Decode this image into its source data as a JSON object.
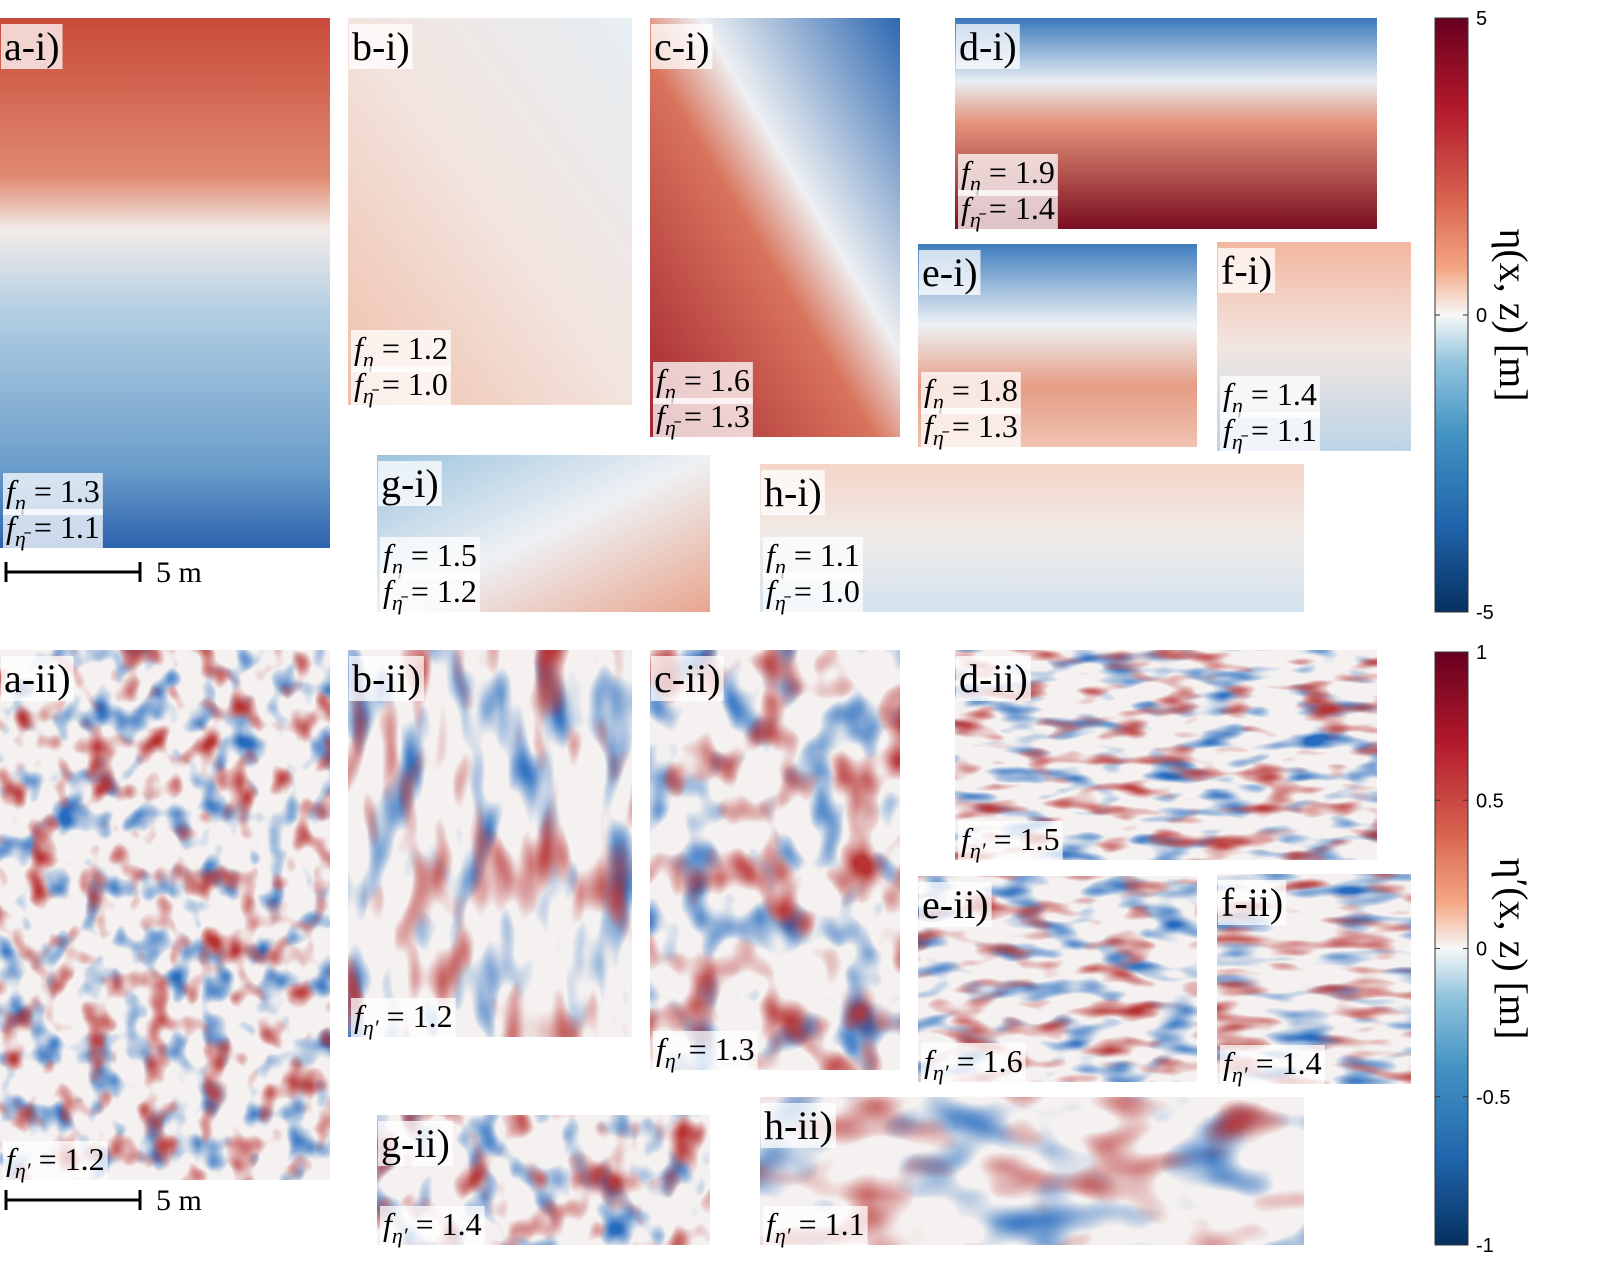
{
  "rows": [
    {
      "panels": [
        {
          "label": "a-i)",
          "stats": [
            {
              "symbol": "f",
              "subscript": "η",
              "text": "= 1.3"
            },
            {
              "symbol": "f",
              "subscript": "η̄",
              "text": "= 1.1"
            }
          ]
        },
        {
          "label": "b-i)",
          "stats": [
            {
              "symbol": "f",
              "subscript": "η",
              "text": "= 1.2"
            },
            {
              "symbol": "f",
              "subscript": "η̄",
              "text": "= 1.0"
            }
          ]
        },
        {
          "label": "c-i)",
          "stats": [
            {
              "symbol": "f",
              "subscript": "η",
              "text": "= 1.6"
            },
            {
              "symbol": "f",
              "subscript": "η̄",
              "text": "= 1.3"
            }
          ]
        },
        {
          "label": "d-i)",
          "stats": [
            {
              "symbol": "f",
              "subscript": "η",
              "text": "= 1.9"
            },
            {
              "symbol": "f",
              "subscript": "η̄",
              "text": "= 1.4"
            }
          ]
        },
        {
          "label": "e-i)",
          "stats": [
            {
              "symbol": "f",
              "subscript": "η",
              "text": "= 1.8"
            },
            {
              "symbol": "f",
              "subscript": "η̄",
              "text": "= 1.3"
            }
          ]
        },
        {
          "label": "f-i)",
          "stats": [
            {
              "symbol": "f",
              "subscript": "η",
              "text": "= 1.4"
            },
            {
              "symbol": "f",
              "subscript": "η̄",
              "text": "= 1.1"
            }
          ]
        },
        {
          "label": "g-i)",
          "stats": [
            {
              "symbol": "f",
              "subscript": "η",
              "text": "= 1.5"
            },
            {
              "symbol": "f",
              "subscript": "η̄",
              "text": "= 1.2"
            }
          ]
        },
        {
          "label": "h-i)",
          "stats": [
            {
              "symbol": "f",
              "subscript": "η",
              "text": "= 1.1"
            },
            {
              "symbol": "f",
              "subscript": "η̄",
              "text": "= 1.0"
            }
          ]
        }
      ],
      "scale_bar": "5 m",
      "colorbar": {
        "label": "η(x, z) [m]",
        "lim": [
          -5,
          5
        ],
        "ticks": [
          5,
          0,
          -5
        ]
      }
    },
    {
      "panels": [
        {
          "label": "a-ii)",
          "stats": [
            {
              "symbol": "f",
              "subscript": "η′",
              "text": "= 1.2"
            }
          ]
        },
        {
          "label": "b-ii)",
          "stats": [
            {
              "symbol": "f",
              "subscript": "η′",
              "text": "= 1.2"
            }
          ]
        },
        {
          "label": "c-ii)",
          "stats": [
            {
              "symbol": "f",
              "subscript": "η′",
              "text": "= 1.3"
            }
          ]
        },
        {
          "label": "d-ii)",
          "stats": [
            {
              "symbol": "f",
              "subscript": "η′",
              "text": "= 1.5"
            }
          ]
        },
        {
          "label": "e-ii)",
          "stats": [
            {
              "symbol": "f",
              "subscript": "η′",
              "text": "= 1.6"
            }
          ]
        },
        {
          "label": "f-ii)",
          "stats": [
            {
              "symbol": "f",
              "subscript": "η′",
              "text": "= 1.4"
            }
          ]
        },
        {
          "label": "g-ii)",
          "stats": [
            {
              "symbol": "f",
              "subscript": "η′",
              "text": "= 1.4"
            }
          ]
        },
        {
          "label": "h-ii)",
          "stats": [
            {
              "symbol": "f",
              "subscript": "η′",
              "text": "= 1.1"
            }
          ]
        }
      ],
      "scale_bar": "5 m",
      "colorbar": {
        "label": "η′(x, z) [m]",
        "lim": [
          -1,
          1
        ],
        "ticks": [
          1,
          0.5,
          0,
          -0.5,
          -1
        ]
      }
    }
  ]
}
